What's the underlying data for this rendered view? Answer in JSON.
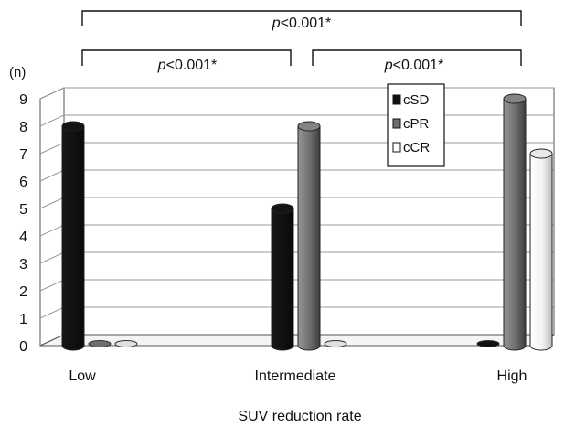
{
  "chart_data": {
    "type": "bar",
    "title": "",
    "xlabel": "SUV reduction rate",
    "ylabel": "(n)",
    "ylim": [
      0,
      9
    ],
    "yticks": [
      "0",
      "1",
      "2",
      "3",
      "4",
      "5",
      "6",
      "7",
      "8",
      "9"
    ],
    "categories": [
      "Low",
      "Intermediate",
      "High"
    ],
    "series": [
      {
        "name": "cSD",
        "values": [
          8,
          5,
          0
        ],
        "color": "#111111"
      },
      {
        "name": "cPR",
        "values": [
          0,
          8,
          9
        ],
        "color": "#6e6e6e"
      },
      {
        "name": "cCR",
        "values": [
          0,
          0,
          7
        ],
        "color": "#ffffff"
      }
    ],
    "grid": true,
    "legend_position": "top-right",
    "annotations": [
      {
        "text": "p<0.001*",
        "between": [
          "Low",
          "High"
        ]
      },
      {
        "text": "p<0.001*",
        "between": [
          "Low",
          "Intermediate"
        ]
      },
      {
        "text": "p<0.001*",
        "between": [
          "Intermediate",
          "High"
        ]
      }
    ]
  }
}
